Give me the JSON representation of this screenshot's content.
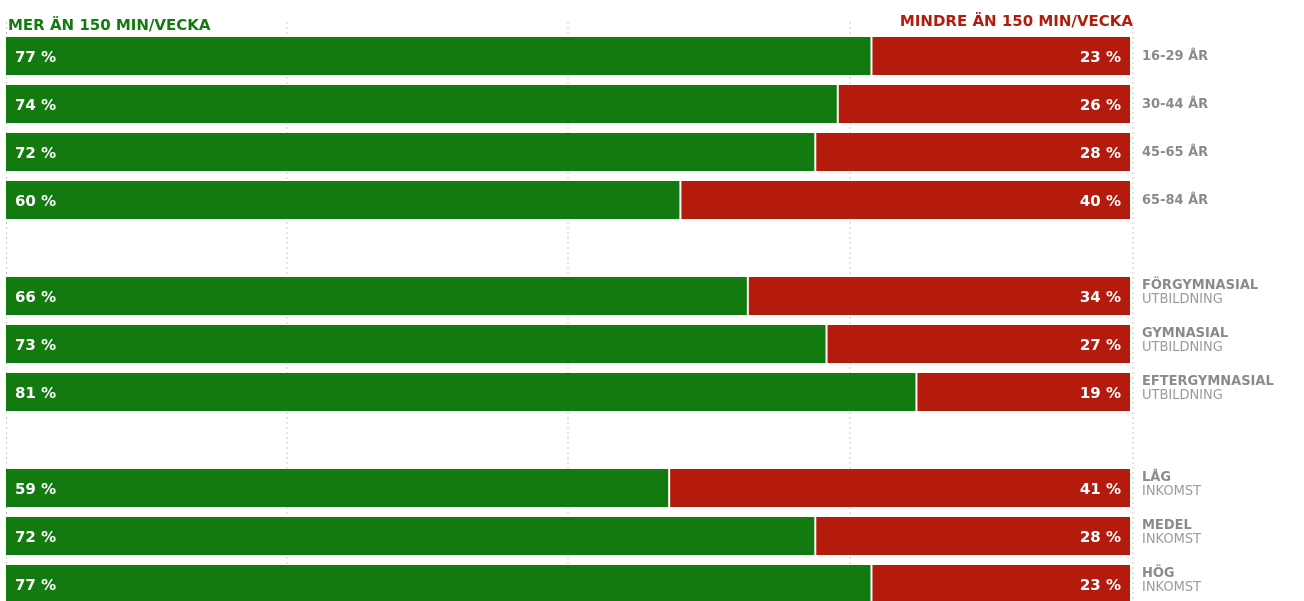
{
  "chart_data": {
    "type": "bar",
    "stacked": true,
    "orientation": "horizontal",
    "legend": {
      "left": "MER ÄN 150 MIN/VECKA",
      "right": "MINDRE ÄN 150 MIN/VECKA"
    },
    "colors": {
      "more": "#137a0f",
      "less": "#b51b0d",
      "label": "#8a8a8a"
    },
    "value_suffix": " %",
    "xlim": [
      0,
      100
    ],
    "grid": true,
    "groups": [
      {
        "categories": [
          {
            "label": "16-29 ÅR",
            "sub": "",
            "more": 77,
            "less": 23
          },
          {
            "label": "30-44 ÅR",
            "sub": "",
            "more": 74,
            "less": 26
          },
          {
            "label": "45-65 ÅR",
            "sub": "",
            "more": 72,
            "less": 28
          },
          {
            "label": "65-84 ÅR",
            "sub": "",
            "more": 60,
            "less": 40
          }
        ]
      },
      {
        "categories": [
          {
            "label": "FÖRGYMNASIAL",
            "sub": "UTBILDNING",
            "more": 66,
            "less": 34
          },
          {
            "label": "GYMNASIAL",
            "sub": "UTBILDNING",
            "more": 73,
            "less": 27
          },
          {
            "label": "EFTERGYMNASIAL",
            "sub": "UTBILDNING",
            "more": 81,
            "less": 19
          }
        ]
      },
      {
        "categories": [
          {
            "label": "LÅG",
            "sub": "INKOMST",
            "more": 59,
            "less": 41
          },
          {
            "label": "MEDEL",
            "sub": "INKOMST",
            "more": 72,
            "less": 28
          },
          {
            "label": "HÖG",
            "sub": "INKOMST",
            "more": 77,
            "less": 23
          }
        ]
      }
    ]
  }
}
